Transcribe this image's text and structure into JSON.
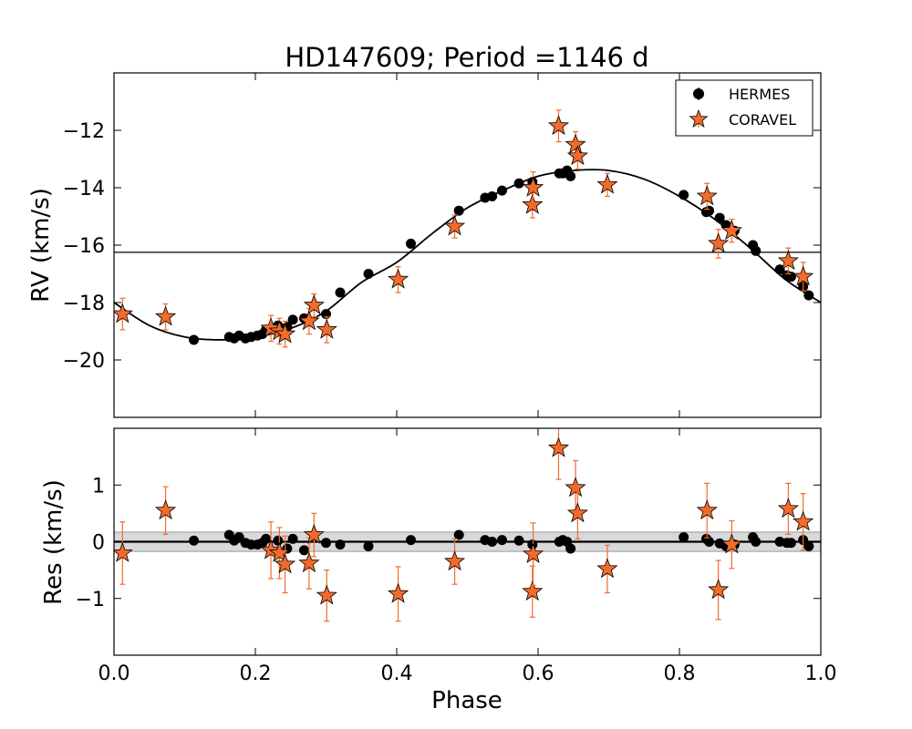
{
  "chart_data": [
    {
      "panel": "top",
      "type": "scatter",
      "title": "HD147609; Period =1146 d",
      "xlabel": "",
      "ylabel": "RV (km/s)",
      "xlim": [
        0.0,
        1.0
      ],
      "ylim": [
        -22.0,
        -10.0
      ],
      "xticks": [],
      "yticks": [
        -12,
        -14,
        -16,
        -18,
        -20
      ],
      "ytick_labels": [
        "−12",
        "−14",
        "−16",
        "−18",
        "−20"
      ],
      "legend": {
        "placement": "top-right",
        "entries": [
          "HERMES",
          "CORAVEL"
        ]
      },
      "hline": -16.25,
      "model": {
        "name": "orbit fit",
        "x": [
          0.0,
          0.05,
          0.1,
          0.15,
          0.2,
          0.25,
          0.3,
          0.35,
          0.4,
          0.45,
          0.5,
          0.55,
          0.6,
          0.65,
          0.7,
          0.75,
          0.8,
          0.85,
          0.9,
          0.95,
          1.0
        ],
        "y": [
          -18.0,
          -18.8,
          -19.2,
          -19.3,
          -19.2,
          -18.9,
          -18.3,
          -17.3,
          -16.6,
          -15.6,
          -14.7,
          -14.1,
          -13.6,
          -13.4,
          -13.4,
          -13.7,
          -14.3,
          -15.1,
          -16.1,
          -17.2,
          -18.0
        ]
      },
      "series": [
        {
          "name": "HERMES",
          "marker": "circle",
          "color": "#000000",
          "x": [
            0.113,
            0.163,
            0.17,
            0.177,
            0.186,
            0.194,
            0.203,
            0.21,
            0.215,
            0.232,
            0.245,
            0.253,
            0.269,
            0.3,
            0.32,
            0.36,
            0.42,
            0.488,
            0.525,
            0.535,
            0.549,
            0.573,
            0.592,
            0.63,
            0.635,
            0.641,
            0.646,
            0.806,
            0.838,
            0.842,
            0.857,
            0.866,
            0.878,
            0.904,
            0.908,
            0.942,
            0.952,
            0.958,
            0.975,
            0.983
          ],
          "y": [
            -19.3,
            -19.2,
            -19.25,
            -19.15,
            -19.25,
            -19.2,
            -19.15,
            -19.1,
            -18.95,
            -18.8,
            -18.85,
            -18.6,
            -18.55,
            -18.4,
            -17.65,
            -17.0,
            -15.95,
            -14.8,
            -14.35,
            -14.3,
            -14.1,
            -13.85,
            -13.8,
            -13.5,
            -13.5,
            -13.4,
            -13.6,
            -14.25,
            -14.85,
            -14.8,
            -15.05,
            -15.3,
            -15.5,
            -16.0,
            -16.2,
            -16.85,
            -17.05,
            -17.1,
            -17.45,
            -17.75
          ]
        },
        {
          "name": "CORAVEL",
          "marker": "star",
          "color": "#f26b2b",
          "x": [
            0.012,
            0.073,
            0.222,
            0.234,
            0.242,
            0.276,
            0.283,
            0.301,
            0.402,
            0.482,
            0.592,
            0.593,
            0.629,
            0.653,
            0.656,
            0.698,
            0.839,
            0.855,
            0.874,
            0.954,
            0.975
          ],
          "y": [
            -18.4,
            -18.5,
            -18.9,
            -19.0,
            -19.1,
            -18.65,
            -18.1,
            -18.95,
            -17.2,
            -15.35,
            -14.6,
            -14.0,
            -11.85,
            -12.5,
            -12.9,
            -13.9,
            -14.3,
            -15.95,
            -15.5,
            -16.55,
            -17.1
          ],
          "yerr": [
            0.55,
            0.45,
            0.45,
            0.45,
            0.45,
            0.45,
            0.4,
            0.45,
            0.45,
            0.4,
            0.45,
            0.55,
            0.55,
            0.45,
            0.45,
            0.4,
            0.45,
            0.5,
            0.4,
            0.45,
            0.5
          ]
        }
      ]
    },
    {
      "panel": "bottom",
      "type": "scatter",
      "title": "",
      "xlabel": "Phase",
      "ylabel": "Res (km/s)",
      "xlim": [
        0.0,
        1.0
      ],
      "ylim": [
        -2.0,
        2.0
      ],
      "xticks": [
        0.0,
        0.2,
        0.4,
        0.6,
        0.8,
        1.0
      ],
      "xtick_labels": [
        "0.0",
        "0.2",
        "0.4",
        "0.6",
        "0.8",
        "1.0"
      ],
      "yticks": [
        1,
        0,
        -1
      ],
      "ytick_labels": [
        "1",
        "0",
        "−1"
      ],
      "hline": 0.0,
      "band": [
        -0.17,
        0.17
      ],
      "series": [
        {
          "name": "HERMES",
          "marker": "circle",
          "color": "#000000",
          "x": [
            0.113,
            0.163,
            0.17,
            0.177,
            0.186,
            0.194,
            0.203,
            0.21,
            0.215,
            0.232,
            0.245,
            0.253,
            0.269,
            0.3,
            0.32,
            0.36,
            0.42,
            0.488,
            0.525,
            0.535,
            0.549,
            0.573,
            0.592,
            0.63,
            0.635,
            0.641,
            0.646,
            0.806,
            0.838,
            0.842,
            0.857,
            0.866,
            0.878,
            0.904,
            0.908,
            0.942,
            0.952,
            0.958,
            0.975,
            0.983
          ],
          "y": [
            0.02,
            0.12,
            0.02,
            0.08,
            -0.02,
            -0.05,
            -0.05,
            -0.02,
            0.05,
            0.02,
            -0.12,
            0.05,
            -0.15,
            -0.02,
            -0.05,
            -0.08,
            0.03,
            0.12,
            0.03,
            0.0,
            0.03,
            0.02,
            -0.05,
            0.0,
            0.03,
            0.0,
            -0.12,
            0.08,
            0.05,
            0.0,
            -0.03,
            -0.08,
            -0.05,
            0.08,
            0.0,
            0.0,
            -0.02,
            -0.02,
            0.03,
            -0.08
          ]
        },
        {
          "name": "CORAVEL",
          "marker": "star",
          "color": "#f26b2b",
          "x": [
            0.012,
            0.073,
            0.222,
            0.234,
            0.242,
            0.276,
            0.283,
            0.301,
            0.402,
            0.482,
            0.592,
            0.593,
            0.629,
            0.653,
            0.656,
            0.698,
            0.839,
            0.855,
            0.874,
            0.954,
            0.975
          ],
          "y": [
            -0.2,
            0.55,
            -0.15,
            -0.2,
            -0.4,
            -0.38,
            0.12,
            -0.95,
            -0.92,
            -0.35,
            -0.88,
            -0.22,
            1.65,
            0.95,
            0.5,
            -0.48,
            0.55,
            -0.85,
            -0.05,
            0.58,
            0.35
          ],
          "yerr": [
            0.55,
            0.42,
            0.5,
            0.45,
            0.5,
            0.45,
            0.38,
            0.45,
            0.48,
            0.4,
            0.45,
            0.55,
            0.55,
            0.48,
            0.45,
            0.42,
            0.48,
            0.52,
            0.42,
            0.45,
            0.5
          ]
        }
      ]
    }
  ]
}
